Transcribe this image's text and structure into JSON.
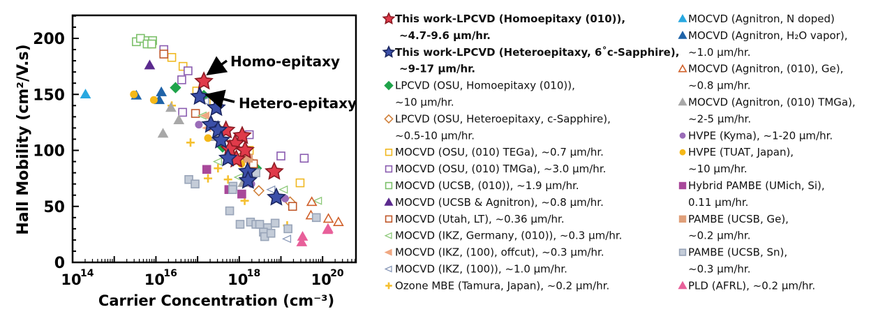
{
  "chart_data": {
    "type": "scatter",
    "xlabel": "Carrier Concentration (cm⁻³)",
    "ylabel": "Hall Mobility (cm²/V.s)",
    "xscale": "log",
    "xlim_log10": [
      14,
      20.8
    ],
    "ylim": [
      0,
      220
    ],
    "xticks_log10": [
      14,
      16,
      18,
      20
    ],
    "xtick_labels": [
      "10",
      "10",
      "10",
      "10"
    ],
    "xtick_exponents": [
      "14",
      "16",
      "18",
      "20"
    ],
    "yticks": [
      0,
      50,
      100,
      150,
      200
    ],
    "ytick_labels": [
      "0",
      "50",
      "100",
      "150",
      "200"
    ],
    "annotations": [
      {
        "text": "Homo-epitaxy",
        "color": "#e8202a",
        "target": [
          17.15,
          161.6
        ]
      },
      {
        "text": "Hetero-epitaxy",
        "color": "#2f4ea0",
        "target": [
          17.05,
          148
        ]
      }
    ],
    "legend_placement": "right",
    "series": [
      {
        "name": [
          "This work-LPCVD (Homoepitaxy (010)),",
          "~4.7-9.6 µm/hr."
        ],
        "bold": true,
        "marker": "star",
        "color": "#e03a4a",
        "edge": "#8b1a22",
        "pts": [
          [
            17.15,
            161.6
          ],
          [
            17.68,
            118
          ],
          [
            18.07,
            113
          ],
          [
            17.9,
            106
          ],
          [
            17.77,
            101
          ],
          [
            18.14,
            100
          ],
          [
            17.93,
            92
          ],
          [
            18.84,
            81
          ]
        ]
      },
      {
        "name": [
          "This work-LPCVD (Heteroepitaxy, 6˚c-Sapphire),",
          "~9-17 µm/hr."
        ],
        "bold": true,
        "marker": "star",
        "color": "#3b4fa8",
        "edge": "#1b2660",
        "pts": [
          [
            17.05,
            148
          ],
          [
            17.45,
            138
          ],
          [
            17.32,
            123
          ],
          [
            17.49,
            118
          ],
          [
            17.56,
            109
          ],
          [
            17.73,
            93
          ],
          [
            18.2,
            81
          ],
          [
            18.21,
            73
          ],
          [
            18.89,
            58
          ]
        ]
      },
      {
        "name": [
          "LPCVD (OSU, Homoepitaxy (010)),",
          "~10 µm/hr."
        ],
        "marker": "diamond",
        "color": "#1fa34a",
        "fill": true,
        "pts": [
          [
            16.47,
            156
          ],
          [
            17.15,
            149
          ],
          [
            17.6,
            103
          ],
          [
            18.41,
            84
          ]
        ]
      },
      {
        "name": [
          "LPCVD (OSU, Heteroepitaxy, c-Sapphire),",
          "~0.5-10 µm/hr."
        ],
        "marker": "diamond",
        "color": "#d0803a",
        "fill": false,
        "pts": [
          [
            17.68,
            106
          ],
          [
            17.97,
            100
          ],
          [
            18.21,
            92
          ],
          [
            18.47,
            64
          ],
          [
            19.22,
            54
          ],
          [
            17.49,
            120
          ]
        ]
      },
      {
        "name": [
          "MOCVD (OSU, (010) TEGa), ~0.7 µm/hr."
        ],
        "marker": "square",
        "color": "#f0b820",
        "fill": false,
        "pts": [
          [
            15.9,
            195
          ],
          [
            16.38,
            183
          ],
          [
            16.65,
            175
          ],
          [
            16.98,
            153
          ],
          [
            17.39,
            143
          ],
          [
            18.24,
            100
          ],
          [
            19.46,
            71
          ]
        ]
      },
      {
        "name": [
          "MOCVD (OSU, (010) TMGa), ~3.0 µm/hr."
        ],
        "marker": "square",
        "color": "#8a5cb0",
        "fill": false,
        "pts": [
          [
            16.19,
            190
          ],
          [
            16.77,
            171
          ],
          [
            16.62,
            163
          ],
          [
            16.64,
            134
          ],
          [
            17.49,
            142
          ],
          [
            18.24,
            114
          ],
          [
            19.0,
            95
          ],
          [
            19.56,
            93
          ]
        ]
      },
      {
        "name": [
          "MOCVD (UCSB, (010)), ~1.9 µm/hr."
        ],
        "marker": "square",
        "color": "#7cc06a",
        "fill": false,
        "pts": [
          [
            15.53,
            197
          ],
          [
            15.63,
            200
          ],
          [
            15.81,
            198
          ],
          [
            15.92,
            198
          ],
          [
            15.79,
            195
          ],
          [
            15.9,
            195
          ]
        ]
      },
      {
        "name": [
          "MOCVD (UCSB & Agnitron), ~0.8 µm/hr."
        ],
        "marker": "triangle",
        "color": "#5b2a8e",
        "fill": true,
        "pts": [
          [
            15.85,
            176
          ]
        ]
      },
      {
        "name": [
          "MOCVD (Utah, LT), ~0.36 µm/hr."
        ],
        "marker": "square",
        "color": "#c0582a",
        "fill": false,
        "pts": [
          [
            16.19,
            186
          ],
          [
            16.95,
            133
          ],
          [
            18.34,
            88
          ],
          [
            19.28,
            50
          ]
        ]
      },
      {
        "name": [
          "MOCVD (IKZ, Germany, (010)), ~0.3 µm/hr."
        ],
        "marker": "ltri",
        "color": "#8cc878",
        "fill": false,
        "pts": [
          [
            17.49,
            90
          ],
          [
            17.99,
            76
          ],
          [
            19.07,
            65
          ],
          [
            19.89,
            55
          ],
          [
            17.12,
            131
          ]
        ]
      },
      {
        "name": [
          "MOCVD (IKZ, (100), offcut), ~0.3 µm/hr."
        ],
        "marker": "ltri",
        "color": "#f0a882",
        "fill": true,
        "pts": [
          [
            17.19,
            131
          ],
          [
            17.23,
            120
          ],
          [
            18.21,
            93
          ]
        ]
      },
      {
        "name": [
          "MOCVD (IKZ, (100)), ~1.0 µm/hr."
        ],
        "marker": "ltri",
        "color": "#8898b8",
        "fill": false,
        "pts": [
          [
            17.18,
            144
          ],
          [
            18.77,
            65
          ],
          [
            19.15,
            21
          ]
        ]
      },
      {
        "name": [
          "Ozone MBE (Tamura, Japan), ~0.2 µm/hr."
        ],
        "marker": "plus",
        "color": "#f5c030",
        "pts": [
          [
            16.38,
            140
          ],
          [
            16.83,
            107
          ],
          [
            17.49,
            84
          ],
          [
            17.25,
            75
          ],
          [
            17.73,
            74
          ],
          [
            18.13,
            55
          ],
          [
            19.15,
            33
          ]
        ]
      },
      {
        "name": [
          "MOCVD (Agnitron, N doped)"
        ],
        "marker": "triangle",
        "color": "#29a8e0",
        "fill": true,
        "pts": [
          [
            14.31,
            150
          ]
        ]
      },
      {
        "name": [
          "MOCVD (Agnitron, H₂O vapor),",
          "~1.0 µm/hr."
        ],
        "marker": "triangle",
        "color": "#1f63a8",
        "fill": true,
        "pts": [
          [
            15.53,
            149
          ],
          [
            16.13,
            152
          ],
          [
            16.08,
            145
          ]
        ]
      },
      {
        "name": [
          "MOCVD (Agnitron, (010), Ge),",
          "~0.8 µm/hr."
        ],
        "marker": "triangle",
        "color": "#d0602a",
        "fill": false,
        "pts": [
          [
            19.74,
            54
          ],
          [
            19.72,
            42
          ],
          [
            20.14,
            39
          ],
          [
            20.38,
            36
          ]
        ]
      },
      {
        "name": [
          "MOCVD (Agnitron, (010) TMGa),",
          " ~2-5 µm/hr."
        ],
        "marker": "triangle",
        "color": "#a8a8a8",
        "fill": true,
        "pts": [
          [
            16.36,
            138
          ],
          [
            16.55,
            127
          ],
          [
            16.17,
            115
          ],
          [
            17.43,
            112
          ],
          [
            18.09,
            71
          ]
        ]
      },
      {
        "name": [
          "HVPE (Kyma), ~1-20 µm/hr."
        ],
        "marker": "circle",
        "color": "#9a6cb8",
        "fill": true,
        "pts": [
          [
            17.03,
            123
          ],
          [
            18.29,
            70
          ],
          [
            19.1,
            57
          ]
        ]
      },
      {
        "name": [
          "HVPE (TUAT, Japan),",
          "~10 µm/hr."
        ],
        "marker": "circle",
        "color": "#f5b818",
        "fill": true,
        "pts": [
          [
            15.47,
            150
          ],
          [
            15.95,
            145
          ],
          [
            17.25,
            111
          ],
          [
            18.05,
            88
          ]
        ]
      },
      {
        "name": [
          "Hybrid PAMBE (UMich, Si),",
          "0.11 µm/hr."
        ],
        "marker": "square",
        "color": "#a8489a",
        "fill": true,
        "pts": [
          [
            17.22,
            83
          ],
          [
            17.75,
            65
          ],
          [
            18.06,
            61
          ]
        ]
      },
      {
        "name": [
          "PAMBE (UCSB, Ge),",
          "~0.2 µm/hr."
        ],
        "marker": "square",
        "color": "#e0a07a",
        "fill": true,
        "pts": [
          [
            18.22,
            93
          ]
        ]
      },
      {
        "name": [
          "PAMBE (UCSB, Sn),",
          "~0.3 µm/hr."
        ],
        "marker": "square",
        "color": "#c4ccd8",
        "edge": "#98a4b8",
        "fill": true,
        "pts": [
          [
            18.02,
            34
          ],
          [
            16.79,
            74
          ],
          [
            16.94,
            70
          ],
          [
            17.85,
            68
          ],
          [
            17.84,
            65
          ],
          [
            17.77,
            46
          ],
          [
            18.27,
            36
          ],
          [
            18.4,
            34
          ],
          [
            18.49,
            34
          ],
          [
            18.68,
            31
          ],
          [
            18.58,
            27
          ],
          [
            18.61,
            23
          ],
          [
            18.76,
            26
          ],
          [
            18.86,
            35
          ],
          [
            18.4,
            80
          ],
          [
            19.85,
            40
          ],
          [
            19.17,
            30
          ]
        ]
      },
      {
        "name": [
          "PLD (AFRL), ~0.2 µm/hr."
        ],
        "marker": "triangle",
        "color": "#e8609a",
        "fill": true,
        "pts": [
          [
            19.52,
            23
          ],
          [
            19.5,
            18
          ],
          [
            20.12,
            29
          ],
          [
            20.13,
            30
          ]
        ]
      }
    ]
  }
}
